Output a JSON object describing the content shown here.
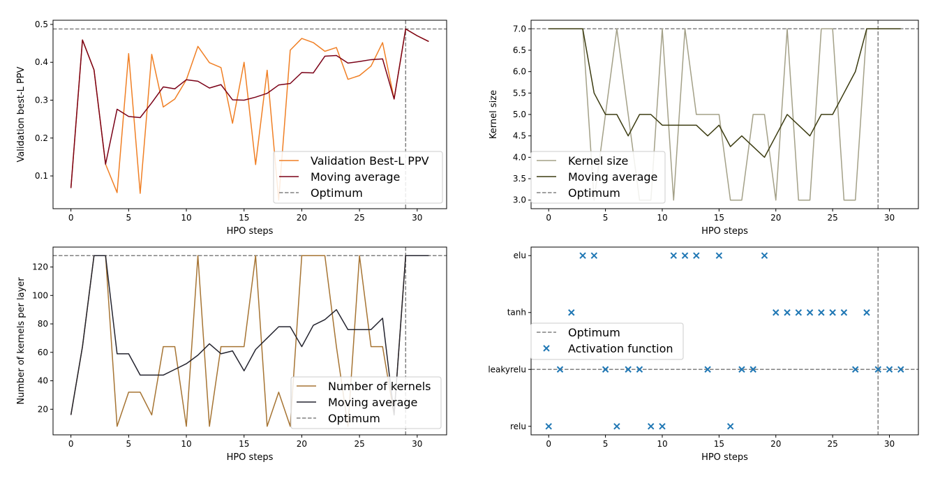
{
  "chart_data": [
    {
      "id": "ppv",
      "type": "line",
      "xlabel": "HPO steps",
      "ylabel": "Validation best-L PPV",
      "xlim": [
        -1.55,
        32.55
      ],
      "ylim": [
        0.0135,
        0.511
      ],
      "xticks": [
        0,
        5,
        10,
        15,
        20,
        25,
        30
      ],
      "yticks": [
        0.1,
        0.2,
        0.3,
        0.4,
        0.5
      ],
      "ytick_labels": [
        "0.1",
        "0.2",
        "0.3",
        "0.4",
        "0.5"
      ],
      "hline": 0.488,
      "vline": 29,
      "legend_position": "lower-right",
      "series": [
        {
          "name": "Validation Best-L PPV",
          "color": "#f07f24",
          "style": "line",
          "x": [
            0,
            1,
            2,
            3,
            4,
            5,
            6,
            7,
            8,
            9,
            10,
            11,
            12,
            13,
            14,
            15,
            16,
            17,
            18,
            19,
            20,
            21,
            22,
            23,
            24,
            25,
            26,
            27,
            28,
            29,
            30,
            31
          ],
          "values": [
            0.068,
            0.459,
            0.38,
            0.131,
            0.056,
            0.423,
            0.054,
            0.421,
            0.282,
            0.303,
            0.354,
            0.442,
            0.399,
            0.386,
            0.239,
            0.4,
            0.13,
            0.379,
            0.036,
            0.432,
            0.463,
            0.452,
            0.429,
            0.439,
            0.355,
            0.365,
            0.39,
            0.452,
            0.303,
            0.488,
            0.47,
            0.455
          ]
        },
        {
          "name": "Moving average",
          "color": "#7a0117",
          "style": "line",
          "x": [
            0,
            1,
            2,
            3,
            4,
            5,
            6,
            7,
            8,
            9,
            10,
            11,
            12,
            13,
            14,
            15,
            16,
            17,
            18,
            19,
            20,
            21,
            22,
            23,
            24,
            25,
            26,
            27,
            28,
            29,
            30,
            31
          ],
          "values": [
            0.068,
            0.459,
            0.38,
            0.131,
            0.276,
            0.257,
            0.254,
            0.293,
            0.335,
            0.33,
            0.354,
            0.35,
            0.332,
            0.341,
            0.301,
            0.3,
            0.308,
            0.318,
            0.34,
            0.344,
            0.373,
            0.372,
            0.416,
            0.418,
            0.398,
            0.402,
            0.407,
            0.409,
            0.303,
            0.488,
            0.47,
            0.455
          ]
        },
        {
          "name": "Optimum",
          "color": "#808080",
          "style": "dashed"
        }
      ]
    },
    {
      "id": "kernel",
      "type": "line",
      "xlabel": "HPO steps",
      "ylabel": "Kernel size",
      "xlim": [
        -1.55,
        32.55
      ],
      "ylim": [
        2.8,
        7.2
      ],
      "xticks": [
        0,
        5,
        10,
        15,
        20,
        25,
        30
      ],
      "yticks": [
        3.0,
        3.5,
        4.0,
        4.5,
        5.0,
        5.5,
        6.0,
        6.5,
        7.0
      ],
      "ytick_labels": [
        "3.0",
        "3.5",
        "4.0",
        "4.5",
        "5.0",
        "5.5",
        "6.0",
        "6.5",
        "7.0"
      ],
      "hline": 7.0,
      "vline": 29,
      "legend_position": "lower-left",
      "series": [
        {
          "name": "Kernel size",
          "color": "#a3a087",
          "style": "line",
          "x": [
            0,
            1,
            2,
            3,
            4,
            5,
            6,
            7,
            8,
            9,
            10,
            11,
            12,
            13,
            14,
            15,
            16,
            17,
            18,
            19,
            20,
            21,
            22,
            23,
            24,
            25,
            26,
            27,
            28,
            29,
            30,
            31
          ],
          "values": [
            7,
            7,
            7,
            7,
            3,
            5,
            7,
            5,
            3,
            3,
            7,
            3,
            7,
            5,
            5,
            5,
            3,
            3,
            5,
            5,
            3,
            7,
            3,
            3,
            7,
            7,
            3,
            3,
            7,
            7,
            7,
            7
          ]
        },
        {
          "name": "Moving average",
          "color": "#3b3b10",
          "style": "line",
          "x": [
            0,
            1,
            2,
            3,
            4,
            5,
            6,
            7,
            8,
            9,
            10,
            11,
            12,
            13,
            14,
            15,
            16,
            17,
            18,
            19,
            20,
            21,
            22,
            23,
            24,
            25,
            26,
            27,
            28,
            29,
            30,
            31
          ],
          "values": [
            7,
            7,
            7,
            7,
            5.5,
            5,
            5,
            4.5,
            5,
            5,
            4.75,
            4.75,
            4.75,
            4.75,
            4.5,
            4.75,
            4.25,
            4.5,
            4.25,
            4,
            4.5,
            5,
            4.75,
            4.5,
            5,
            5,
            5.5,
            6,
            7,
            7,
            7,
            7
          ]
        },
        {
          "name": "Optimum",
          "color": "#808080",
          "style": "dashed"
        }
      ]
    },
    {
      "id": "kernels",
      "type": "line",
      "xlabel": "HPO steps",
      "ylabel": "Number of kernels per layer",
      "xlim": [
        -1.55,
        32.55
      ],
      "ylim": [
        2,
        134
      ],
      "xticks": [
        0,
        5,
        10,
        15,
        20,
        25,
        30
      ],
      "yticks": [
        20,
        40,
        60,
        80,
        100,
        120
      ],
      "ytick_labels": [
        "20",
        "40",
        "60",
        "80",
        "100",
        "120"
      ],
      "hline": 128,
      "vline": 29,
      "legend_position": "lower-right",
      "series": [
        {
          "name": "Number of kernels",
          "color": "#a67433",
          "style": "line",
          "x": [
            0,
            1,
            2,
            3,
            4,
            5,
            6,
            7,
            8,
            9,
            10,
            11,
            12,
            13,
            14,
            15,
            16,
            17,
            18,
            19,
            20,
            21,
            22,
            23,
            24,
            25,
            26,
            27,
            28,
            29,
            30,
            31
          ],
          "values": [
            16,
            64,
            128,
            128,
            8,
            32,
            32,
            16,
            64,
            64,
            8,
            128,
            8,
            64,
            64,
            64,
            128,
            8,
            32,
            8,
            128,
            128,
            128,
            64,
            8,
            128,
            64,
            64,
            16,
            128,
            128,
            128
          ]
        },
        {
          "name": "Moving average",
          "color": "#23232e",
          "style": "line",
          "x": [
            0,
            1,
            2,
            3,
            4,
            5,
            6,
            7,
            8,
            9,
            10,
            11,
            12,
            13,
            14,
            15,
            16,
            17,
            18,
            19,
            20,
            21,
            22,
            23,
            24,
            25,
            26,
            27,
            28,
            29,
            30,
            31
          ],
          "values": [
            16,
            64,
            128,
            128,
            59,
            59,
            44,
            44,
            44,
            48,
            52,
            58,
            66,
            59,
            61,
            47,
            62,
            70,
            78,
            78,
            64,
            79,
            83,
            90,
            76,
            76,
            76,
            84,
            16,
            128,
            128,
            128
          ]
        },
        {
          "name": "Optimum",
          "color": "#808080",
          "style": "dashed"
        }
      ]
    },
    {
      "id": "activation",
      "type": "scatter",
      "xlabel": "HPO steps",
      "ylabel": "",
      "xlim": [
        -1.55,
        32.55
      ],
      "ylim": [
        -0.15,
        3.15
      ],
      "xticks": [
        0,
        5,
        10,
        15,
        20,
        25,
        30
      ],
      "yticks": [
        0,
        1,
        2,
        3
      ],
      "ytick_labels": [
        "relu",
        "leakyrelu",
        "tanh",
        "elu"
      ],
      "hline": 1,
      "vline": 29,
      "legend_position": "center-left",
      "series": [
        {
          "name": "Optimum",
          "color": "#808080",
          "style": "dashed"
        },
        {
          "name": "Activation function",
          "color": "#1f77b4",
          "style": "marker",
          "x": [
            0,
            1,
            2,
            3,
            4,
            5,
            6,
            7,
            8,
            9,
            10,
            11,
            12,
            13,
            14,
            15,
            16,
            17,
            18,
            19,
            20,
            21,
            22,
            23,
            24,
            25,
            26,
            27,
            28,
            29,
            30,
            31
          ],
          "values": [
            0,
            1,
            2,
            3,
            3,
            1,
            0,
            1,
            1,
            0,
            0,
            3,
            3,
            3,
            1,
            3,
            0,
            1,
            1,
            3,
            2,
            2,
            2,
            2,
            2,
            2,
            2,
            1,
            2,
            1,
            1,
            1
          ]
        }
      ]
    }
  ]
}
